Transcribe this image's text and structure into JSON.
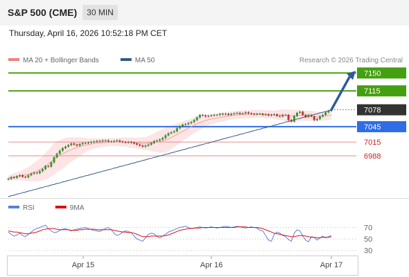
{
  "header": {
    "title": "S&P 500 (CME)",
    "timeframe": "30 MIN",
    "datetime": "Thursday, April 16, 2026 10:52:18 PM CET"
  },
  "legend": {
    "items": [
      {
        "label": "MA 20 + Bollinger Bands",
        "color": "#f08080"
      },
      {
        "label": "MA 50",
        "color": "#2e5a8a"
      }
    ],
    "credit": "Research © 2026 Trading Central"
  },
  "rsi_legend": {
    "items": [
      {
        "label": "RSI",
        "color": "#5b7fd8"
      },
      {
        "label": "9MA",
        "color": "#dd1111"
      }
    ]
  },
  "colors": {
    "resistance": "#44a010",
    "support": "#2f6ce5",
    "support_lines": "#e88a8a",
    "current": "#333333",
    "arrow": "#2e5a9a",
    "bollinger_fill": "#fde5e5",
    "candle_up": "#2e9e2e",
    "candle_down": "#d42a2a"
  },
  "chart_data": [
    {
      "type": "candlestick",
      "title": "S&P 500 (CME)",
      "timeframe": "30 MIN",
      "x_tick_labels": [
        "Apr 15",
        "Apr 16",
        "Apr 17"
      ],
      "ylim": [
        6900,
        7160
      ],
      "levels": [
        {
          "value": 7150,
          "label": "7150",
          "kind": "resistance"
        },
        {
          "value": 7115,
          "label": "7115",
          "kind": "resistance"
        },
        {
          "value": 7078,
          "label": "7078",
          "kind": "current"
        },
        {
          "value": 7045,
          "label": "7045",
          "kind": "pivot"
        },
        {
          "value": 7015,
          "label": "7015",
          "kind": "support"
        },
        {
          "value": 6988,
          "label": "6988",
          "kind": "support"
        }
      ],
      "close": [
        6943,
        6946,
        6945,
        6948,
        6950,
        6947,
        6946,
        6950,
        6953,
        6955,
        6954,
        6958,
        6962,
        6968,
        6967,
        6975,
        6985,
        6992,
        6998,
        7003,
        7006,
        7009,
        7012,
        7010,
        7008,
        7011,
        7013,
        7013,
        7014,
        7015,
        7016,
        7017,
        7017,
        7018,
        7018,
        7016,
        7016,
        7017,
        7018,
        7016,
        7015,
        7014,
        7015,
        7014,
        7012,
        7010,
        7008,
        7006,
        7008,
        7010,
        7013,
        7017,
        7018,
        7020,
        7023,
        7028,
        7032,
        7034,
        7036,
        7042,
        7046,
        7049,
        7050,
        7052,
        7054,
        7058,
        7063,
        7068,
        7067,
        7065,
        7066,
        7067,
        7068,
        7068,
        7070,
        7069,
        7070,
        7068,
        7070,
        7071,
        7072,
        7070,
        7071,
        7073,
        7071,
        7070,
        7069,
        7070,
        7070,
        7068,
        7069,
        7067,
        7068,
        7069,
        7066,
        7065,
        7068,
        7068,
        7058,
        7055,
        7066,
        7072,
        7074,
        7068,
        7064,
        7068,
        7065,
        7058,
        7060,
        7065,
        7068,
        7073,
        7076,
        7078
      ],
      "ma20": [
        6944,
        6946,
        6947,
        6948,
        6949,
        6950,
        6951,
        6952,
        6954,
        6956,
        6958,
        6961,
        6964,
        6968,
        6972,
        6977,
        6982,
        6986,
        6989,
        6992,
        6995,
        6998,
        7000,
        7002,
        7004,
        7006,
        7008,
        7009,
        7010,
        7011,
        7012,
        7013,
        7013,
        7014,
        7014,
        7015,
        7015,
        7015,
        7015,
        7015,
        7015,
        7015,
        7014,
        7014,
        7013,
        7013,
        7013,
        7012,
        7012,
        7013,
        7013,
        7014,
        7015,
        7016,
        7017,
        7019,
        7021,
        7024,
        7027,
        7030,
        7033,
        7036,
        7039,
        7042,
        7045,
        7048,
        7051,
        7053,
        7055,
        7057,
        7059,
        7060,
        7061,
        7062,
        7063,
        7064,
        7065,
        7066,
        7067,
        7067,
        7068,
        7068,
        7069,
        7069,
        7069,
        7070,
        7070,
        7070,
        7070,
        7070,
        7069,
        7069,
        7069,
        7068,
        7068,
        7068,
        7068,
        7067,
        7067,
        7066,
        7066,
        7066,
        7067,
        7067,
        7066,
        7066,
        7066,
        7065,
        7065,
        7065,
        7066,
        7066,
        7067,
        7068
      ],
      "ma50": [
        6908,
        6910,
        6911,
        6913,
        6914,
        6916,
        6917,
        6919,
        6920,
        6922,
        6923,
        6925,
        6926,
        6928,
        6929,
        6931,
        6932,
        6934,
        6935,
        6937,
        6938,
        6940,
        6941,
        6943,
        6944,
        6946,
        6947,
        6949,
        6950,
        6952,
        6953,
        6955,
        6956,
        6958,
        6959,
        6961,
        6962,
        6964,
        6965,
        6967,
        6968,
        6970,
        6971,
        6973,
        6974,
        6976,
        6977,
        6979,
        6980,
        6982,
        6983,
        6985,
        6986,
        6988,
        6989,
        6991,
        6992,
        6994,
        6995,
        6997,
        6998,
        7000,
        7001,
        7003,
        7004,
        7006,
        7007,
        7009,
        7010,
        7012,
        7013,
        7015,
        7016,
        7018,
        7019,
        7021,
        7022,
        7024,
        7025,
        7027,
        7028,
        7030,
        7031,
        7033,
        7034,
        7036,
        7037,
        7039,
        7040,
        7042,
        7043,
        7045,
        7046,
        7048,
        7049,
        7051,
        7052,
        7054,
        7055,
        7057,
        7058,
        7060,
        7061,
        7063,
        7064,
        7066,
        7067,
        7069,
        7070,
        7072,
        7073,
        7075,
        7076,
        7078
      ],
      "bollinger_width": [
        5,
        6,
        7,
        8,
        9,
        10,
        12,
        14,
        16,
        18,
        20,
        22,
        24,
        26,
        28,
        29,
        30,
        30,
        30,
        29,
        28,
        26,
        24,
        22,
        20,
        18,
        16,
        14,
        12,
        11,
        10,
        9,
        9,
        8,
        8,
        8,
        8,
        8,
        8,
        9,
        9,
        9,
        10,
        10,
        10,
        11,
        11,
        12,
        13,
        14,
        16,
        18,
        20,
        22,
        23,
        24,
        24,
        23,
        22,
        21,
        20,
        19,
        18,
        17,
        16,
        16,
        15,
        14,
        13,
        12,
        11,
        10,
        10,
        9,
        9,
        9,
        9,
        8,
        8,
        8,
        8,
        8,
        8,
        8,
        8,
        8,
        8,
        8,
        8,
        8,
        8,
        8,
        8,
        8,
        9,
        10,
        11,
        12,
        12,
        12,
        12,
        12,
        11,
        11,
        10,
        10,
        10,
        10,
        9,
        9,
        9,
        9,
        9,
        9
      ],
      "projection": {
        "from": 7078,
        "to": 7150
      }
    },
    {
      "type": "line",
      "title": "RSI",
      "ylim": [
        20,
        85
      ],
      "y_ticks": [
        70,
        50,
        30
      ],
      "series": [
        {
          "name": "RSI",
          "values": [
            62,
            58,
            55,
            57,
            60,
            56,
            54,
            58,
            62,
            66,
            68,
            70,
            72,
            74,
            68,
            64,
            61,
            62,
            65,
            67,
            68,
            66,
            64,
            66,
            67,
            68,
            69,
            70,
            68,
            66,
            65,
            64,
            63,
            66,
            68,
            70,
            66,
            60,
            56,
            58,
            62,
            64,
            63,
            61,
            55,
            50,
            48,
            46,
            52,
            58,
            60,
            59,
            54,
            52,
            55,
            58,
            62,
            64,
            66,
            68,
            70,
            71,
            72,
            70,
            68,
            69,
            70,
            71,
            70,
            69,
            70,
            71,
            70,
            69,
            70,
            71,
            72,
            71,
            70,
            71,
            72,
            71,
            70,
            69,
            70,
            71,
            70,
            69,
            65,
            64,
            56,
            48,
            46,
            58,
            62,
            60,
            56,
            54,
            49,
            46,
            60,
            66,
            64,
            55,
            48,
            45,
            54,
            53,
            48,
            52,
            55,
            52,
            54,
            56
          ]
        },
        {
          "name": "9MA",
          "values": [
            64,
            63,
            62,
            62,
            61,
            60,
            59,
            59,
            60,
            61,
            62,
            64,
            66,
            67,
            68,
            68,
            68,
            67,
            66,
            66,
            66,
            66,
            65,
            65,
            65,
            66,
            66,
            67,
            67,
            67,
            67,
            66,
            66,
            66,
            66,
            66,
            66,
            65,
            64,
            63,
            62,
            62,
            61,
            61,
            60,
            58,
            56,
            54,
            54,
            54,
            55,
            55,
            55,
            55,
            55,
            56,
            57,
            59,
            61,
            63,
            65,
            66,
            67,
            68,
            68,
            69,
            69,
            69,
            70,
            70,
            70,
            70,
            70,
            70,
            70,
            70,
            70,
            70,
            70,
            70,
            71,
            71,
            71,
            71,
            70,
            70,
            70,
            70,
            69,
            68,
            66,
            64,
            62,
            60,
            59,
            58,
            57,
            56,
            55,
            54,
            54,
            55,
            56,
            56,
            55,
            54,
            53,
            53,
            52,
            52,
            53,
            53,
            53,
            54
          ]
        }
      ]
    }
  ]
}
